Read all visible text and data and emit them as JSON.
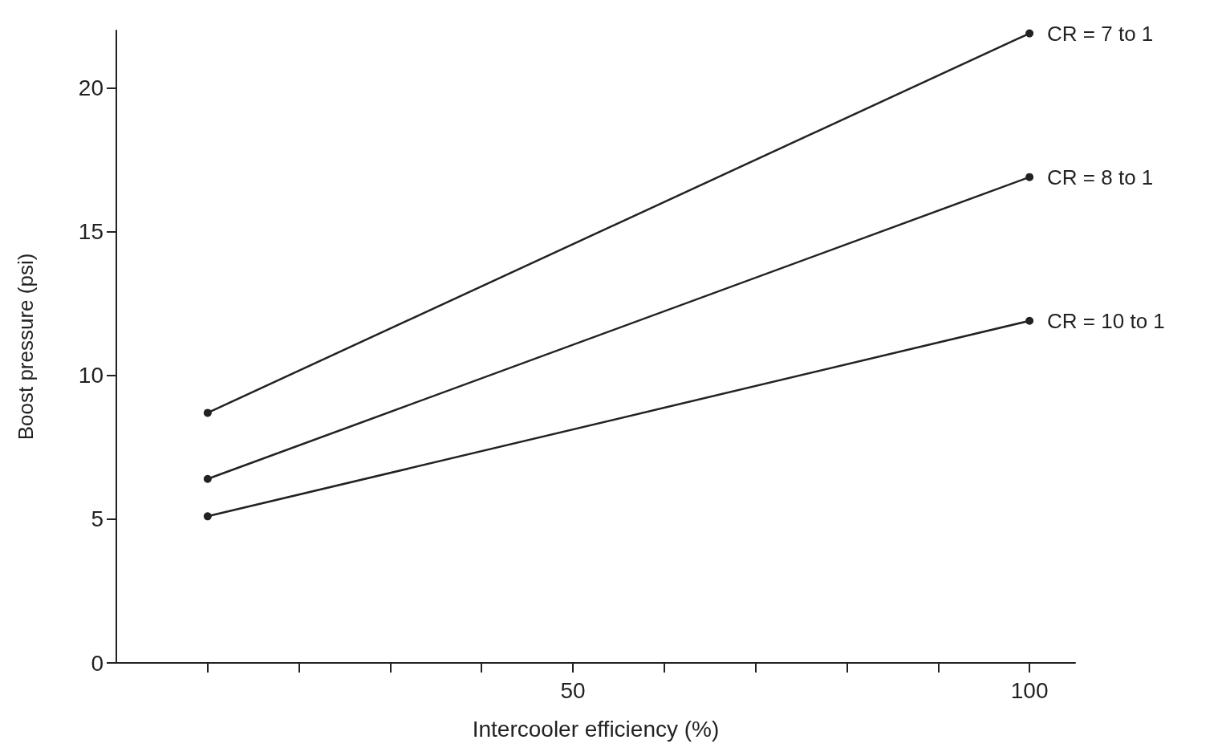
{
  "chart_data": {
    "type": "line",
    "xlabel": "Intercooler efficiency (%)",
    "ylabel": "Boost pressure (psi)",
    "x": [
      10,
      100
    ],
    "series": [
      {
        "name": "CR = 7 to 1",
        "color": "#222222",
        "values": [
          8.7,
          21.9
        ]
      },
      {
        "name": "CR = 8 to 1",
        "color": "#222222",
        "values": [
          6.4,
          16.9
        ]
      },
      {
        "name": "CR = 10 to 1",
        "color": "#222222",
        "values": [
          5.1,
          11.9
        ]
      }
    ],
    "xlim": [
      0,
      105
    ],
    "ylim": [
      0,
      22
    ],
    "xticks": [
      {
        "value": 10,
        "label": null
      },
      {
        "value": 20,
        "label": null
      },
      {
        "value": 30,
        "label": null
      },
      {
        "value": 40,
        "label": null
      },
      50,
      {
        "value": 60,
        "label": null
      },
      {
        "value": 70,
        "label": null
      },
      {
        "value": 80,
        "label": null
      },
      {
        "value": 90,
        "label": null
      },
      100
    ],
    "yticks": [
      0,
      5,
      10,
      15,
      20
    ],
    "grid": false,
    "legend": false,
    "marker": "circle",
    "line_style": "solid"
  }
}
